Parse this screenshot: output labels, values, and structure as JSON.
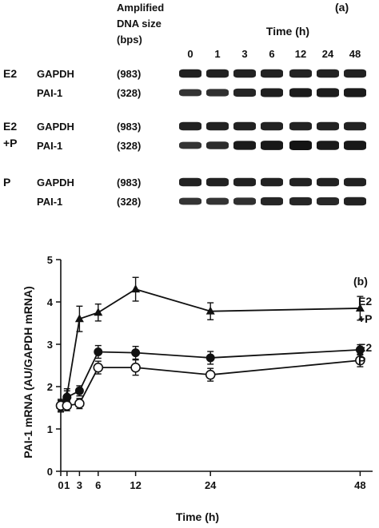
{
  "gel": {
    "panel_label": "(a)",
    "header": {
      "line1": "Amplified",
      "line2": "DNA size",
      "line3": "(bps)"
    },
    "time_title": "Time (h)",
    "lanes": [
      "0",
      "1",
      "3",
      "6",
      "12",
      "24",
      "48"
    ],
    "groups": [
      {
        "name": "E2",
        "name2": "",
        "rows": [
          {
            "gene": "GAPDH",
            "size": "(983)",
            "intensity": [
              0.8,
              0.8,
              0.8,
              0.8,
              0.8,
              0.8,
              0.8
            ]
          },
          {
            "gene": "PAI-1",
            "size": "(328)",
            "intensity": [
              0.55,
              0.6,
              0.75,
              0.85,
              0.9,
              0.88,
              0.9
            ]
          }
        ]
      },
      {
        "name": "E2",
        "name2": "+P",
        "rows": [
          {
            "gene": "GAPDH",
            "size": "(983)",
            "intensity": [
              0.8,
              0.8,
              0.8,
              0.8,
              0.8,
              0.8,
              0.8
            ]
          },
          {
            "gene": "PAI-1",
            "size": "(328)",
            "intensity": [
              0.55,
              0.65,
              0.9,
              0.95,
              1.0,
              0.92,
              0.95
            ]
          }
        ]
      },
      {
        "name": "P",
        "name2": "",
        "rows": [
          {
            "gene": "GAPDH",
            "size": "(983)",
            "intensity": [
              0.8,
              0.8,
              0.8,
              0.8,
              0.8,
              0.8,
              0.8
            ]
          },
          {
            "gene": "PAI-1",
            "size": "(328)",
            "intensity": [
              0.55,
              0.55,
              0.6,
              0.75,
              0.75,
              0.72,
              0.8
            ]
          }
        ]
      }
    ]
  },
  "chart_data": {
    "type": "line",
    "panel_label": "(b)",
    "xlabel": "Time (h)",
    "ylabel": "PAI-1 mRNA (AU/GAPDH mRNA)",
    "xlim": [
      0,
      50
    ],
    "ylim": [
      0,
      5
    ],
    "x_ticks": [
      0,
      1,
      3,
      6,
      12,
      24,
      48
    ],
    "y_ticks": [
      0,
      1,
      2,
      3,
      4,
      5
    ],
    "x": [
      0,
      1,
      3,
      6,
      12,
      24,
      48
    ],
    "series": [
      {
        "label1": "E2",
        "label2": "+P",
        "marker": "triangle",
        "values": [
          1.55,
          1.8,
          3.6,
          3.75,
          4.3,
          3.78,
          3.85
        ],
        "errors": [
          0.15,
          0.15,
          0.3,
          0.2,
          0.28,
          0.2,
          0.28
        ]
      },
      {
        "label1": "E2",
        "label2": "",
        "marker": "filled-circle",
        "values": [
          1.55,
          1.75,
          1.9,
          2.82,
          2.8,
          2.68,
          2.87
        ],
        "errors": [
          0.12,
          0.15,
          0.12,
          0.15,
          0.15,
          0.15,
          0.12
        ]
      },
      {
        "label1": "P",
        "label2": "",
        "marker": "open-circle",
        "values": [
          1.55,
          1.55,
          1.6,
          2.45,
          2.45,
          2.28,
          2.62
        ],
        "errors": [
          0.12,
          0.12,
          0.12,
          0.15,
          0.18,
          0.15,
          0.15
        ]
      }
    ]
  }
}
